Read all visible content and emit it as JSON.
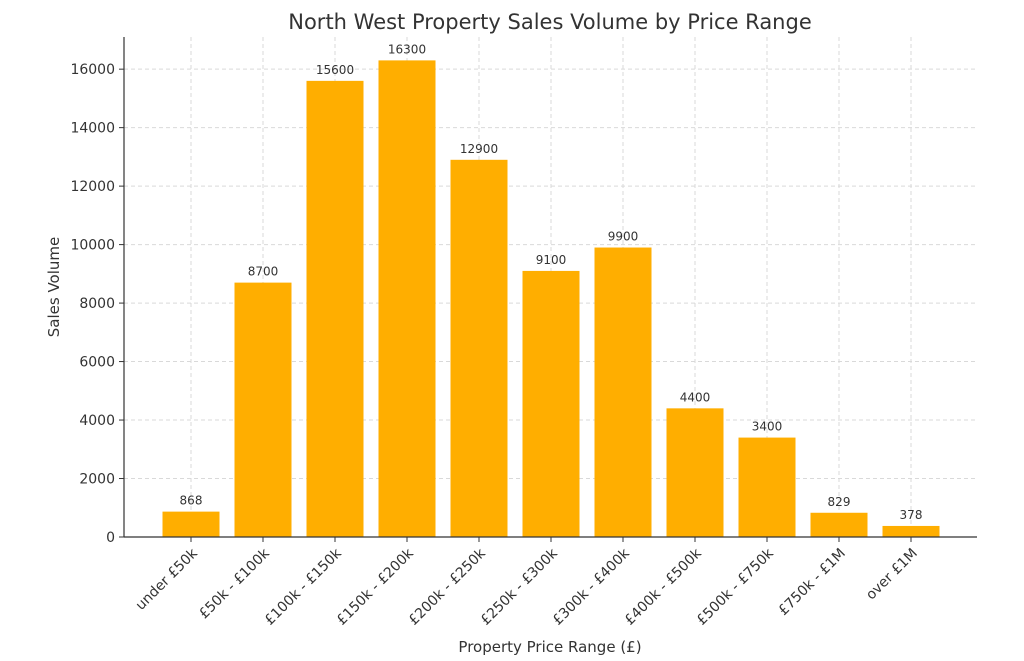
{
  "chart_data": {
    "type": "bar",
    "title": "North West Property Sales Volume by Price Range",
    "xlabel": "Property Price Range (£)",
    "ylabel": "Sales Volume",
    "categories": [
      "under £50k",
      "£50k - £100k",
      "£100k - £150k",
      "£150k - £200k",
      "£200k - £250k",
      "£250k - £300k",
      "£300k - £400k",
      "£400k - £500k",
      "£500k - £750k",
      "£750k - £1M",
      "over £1M"
    ],
    "values": [
      868,
      8700,
      15600,
      16300,
      12900,
      9100,
      9900,
      4400,
      3400,
      829,
      378
    ],
    "ylim": [
      0,
      17100
    ],
    "yticks": [
      0,
      2000,
      4000,
      6000,
      8000,
      10000,
      12000,
      14000,
      16000
    ],
    "grid": true,
    "bar_color": "#FFAE00",
    "data_labels": true
  }
}
